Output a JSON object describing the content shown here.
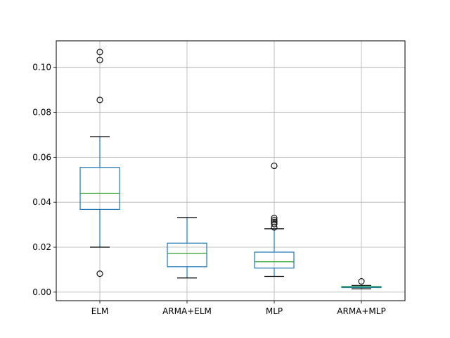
{
  "chart_data": {
    "type": "boxplot",
    "title": "",
    "xlabel": "",
    "ylabel": "",
    "ylim": [
      -0.0038,
      0.1118
    ],
    "grid": true,
    "yticks": [
      {
        "value": 0.0,
        "label": "0.00"
      },
      {
        "value": 0.02,
        "label": "0.02"
      },
      {
        "value": 0.04,
        "label": "0.04"
      },
      {
        "value": 0.06,
        "label": "0.06"
      },
      {
        "value": 0.08,
        "label": "0.08"
      },
      {
        "value": 0.1,
        "label": "0.10"
      }
    ],
    "categories": [
      "ELM",
      "ARMA+ELM",
      "MLP",
      "ARMA+MLP"
    ],
    "boxes": [
      {
        "label": "ELM",
        "whisker_low": 0.02,
        "q1": 0.0368,
        "median": 0.044,
        "q3": 0.0555,
        "whisker_high": 0.0692,
        "outliers": [
          0.0082,
          0.0855,
          0.1033,
          0.1068
        ]
      },
      {
        "label": "ARMA+ELM",
        "whisker_low": 0.0063,
        "q1": 0.0113,
        "median": 0.0173,
        "q3": 0.0218,
        "whisker_high": 0.0332,
        "outliers": []
      },
      {
        "label": "MLP",
        "whisker_low": 0.007,
        "q1": 0.0107,
        "median": 0.0135,
        "q3": 0.0178,
        "whisker_high": 0.0282,
        "outliers": [
          0.0288,
          0.0303,
          0.0312,
          0.032,
          0.033,
          0.0562
        ]
      },
      {
        "label": "ARMA+MLP",
        "whisker_low": 0.0015,
        "q1": 0.002,
        "median": 0.0023,
        "q3": 0.0025,
        "whisker_high": 0.003,
        "outliers": [
          0.0048
        ]
      }
    ],
    "colors": {
      "box": "#1f77b4",
      "median": "#2ca02c",
      "grid": "#b0b0b0",
      "axis": "#000000",
      "outlier": "#000000"
    }
  }
}
